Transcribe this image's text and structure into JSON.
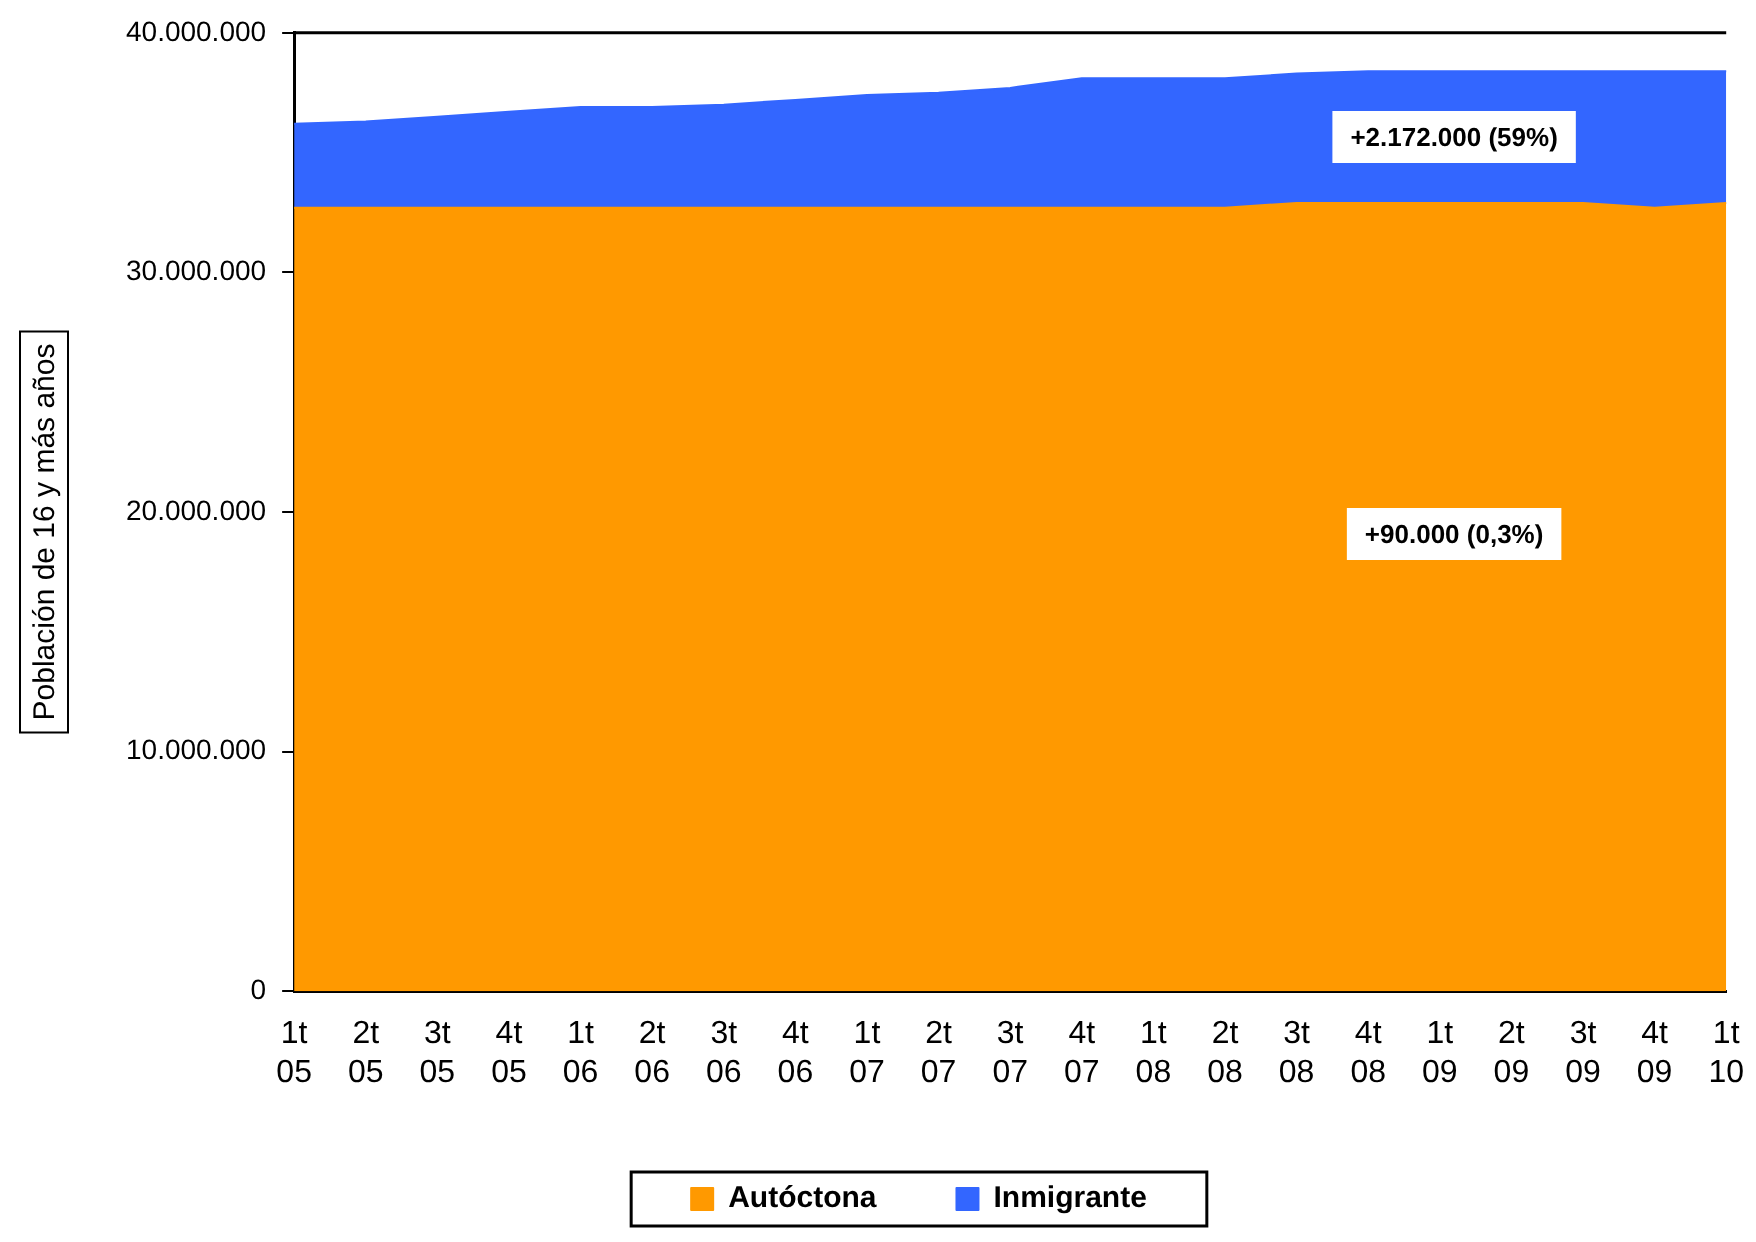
{
  "chart_data": {
    "type": "area",
    "stacked": true,
    "ylabel": "Población de 16 y más años",
    "categories": [
      "1t 05",
      "2t 05",
      "3t 05",
      "4t 05",
      "1t 06",
      "2t 06",
      "3t 06",
      "4t 06",
      "1t 07",
      "2t 07",
      "3t 07",
      "4t 07",
      "1t 08",
      "2t 08",
      "3t 08",
      "4t 08",
      "1t 09",
      "2t 09",
      "3t 09",
      "4t 09",
      "1t 10"
    ],
    "series": [
      {
        "name": "Autóctona",
        "color": "#ff9900",
        "values": [
          32700000,
          32700000,
          32700000,
          32700000,
          32700000,
          32700000,
          32700000,
          32700000,
          32700000,
          32700000,
          32700000,
          32700000,
          32700000,
          32700000,
          32900000,
          32900000,
          32900000,
          32900000,
          32900000,
          32700000,
          32900000
        ]
      },
      {
        "name": "Inmigrante",
        "color": "#3366ff",
        "values": [
          3500000,
          3600000,
          3800000,
          4000000,
          4200000,
          4200000,
          4300000,
          4500000,
          4700000,
          4800000,
          5000000,
          5400000,
          5400000,
          5400000,
          5400000,
          5500000,
          5500000,
          5500000,
          5500000,
          5700000,
          5500000
        ]
      }
    ],
    "ylim": [
      0,
      40000000
    ],
    "yticks": [
      {
        "value": 0,
        "label": "0"
      },
      {
        "value": 10000000,
        "label": "10.000.000"
      },
      {
        "value": 20000000,
        "label": "20.000.000"
      },
      {
        "value": 30000000,
        "label": "30.000.000"
      },
      {
        "value": 40000000,
        "label": "40.000.000"
      }
    ],
    "grid": false,
    "legend": "bottom",
    "annotations": [
      "+2.172.000 (59%)",
      "+90.000 (0,3%)"
    ]
  }
}
